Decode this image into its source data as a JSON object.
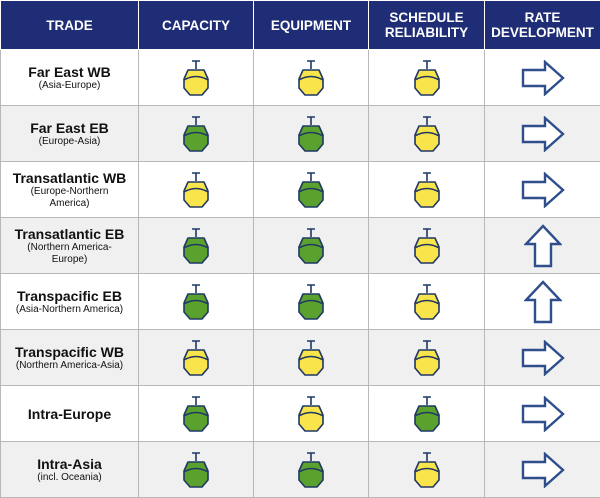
{
  "headers": {
    "trade": "TRADE",
    "capacity": "CAPACITY",
    "equipment": "EQUIPMENT",
    "schedule_reliability": [
      "SCHEDULE",
      "RELIABILITY"
    ],
    "rate_development": [
      "RATE",
      "DEVELOPMENT"
    ]
  },
  "colors": {
    "header_bg": "#1f2d76",
    "yellow": "#f9e44b",
    "green": "#5aa22d",
    "ship_outline": "#1f3864",
    "arrow_outline": "#2f4e8c"
  },
  "rows": [
    {
      "name": "Far East WB",
      "sub": [
        "(Asia-Europe)"
      ],
      "capacity": "yellow",
      "equipment": "yellow",
      "reliability": "yellow",
      "rate": "right"
    },
    {
      "name": "Far East EB",
      "sub": [
        "(Europe-Asia)"
      ],
      "capacity": "green",
      "equipment": "green",
      "reliability": "yellow",
      "rate": "right"
    },
    {
      "name": "Transatlantic WB",
      "sub": [
        "(Europe-Northern",
        "America)"
      ],
      "capacity": "yellow",
      "equipment": "green",
      "reliability": "yellow",
      "rate": "right"
    },
    {
      "name": "Transatlantic EB",
      "sub": [
        "(Northern America-",
        "Europe)"
      ],
      "capacity": "green",
      "equipment": "green",
      "reliability": "yellow",
      "rate": "up"
    },
    {
      "name": "Transpacific EB",
      "sub": [
        "(Asia-Northern America)"
      ],
      "capacity": "green",
      "equipment": "green",
      "reliability": "yellow",
      "rate": "up"
    },
    {
      "name": "Transpacific WB",
      "sub": [
        "(Northern America-Asia)"
      ],
      "capacity": "yellow",
      "equipment": "yellow",
      "reliability": "yellow",
      "rate": "right"
    },
    {
      "name": "Intra-Europe",
      "sub": [],
      "capacity": "green",
      "equipment": "yellow",
      "reliability": "green",
      "rate": "right"
    },
    {
      "name": "Intra-Asia",
      "sub": [
        "(incl. Oceania)"
      ],
      "capacity": "green",
      "equipment": "green",
      "reliability": "yellow",
      "rate": "right"
    }
  ]
}
